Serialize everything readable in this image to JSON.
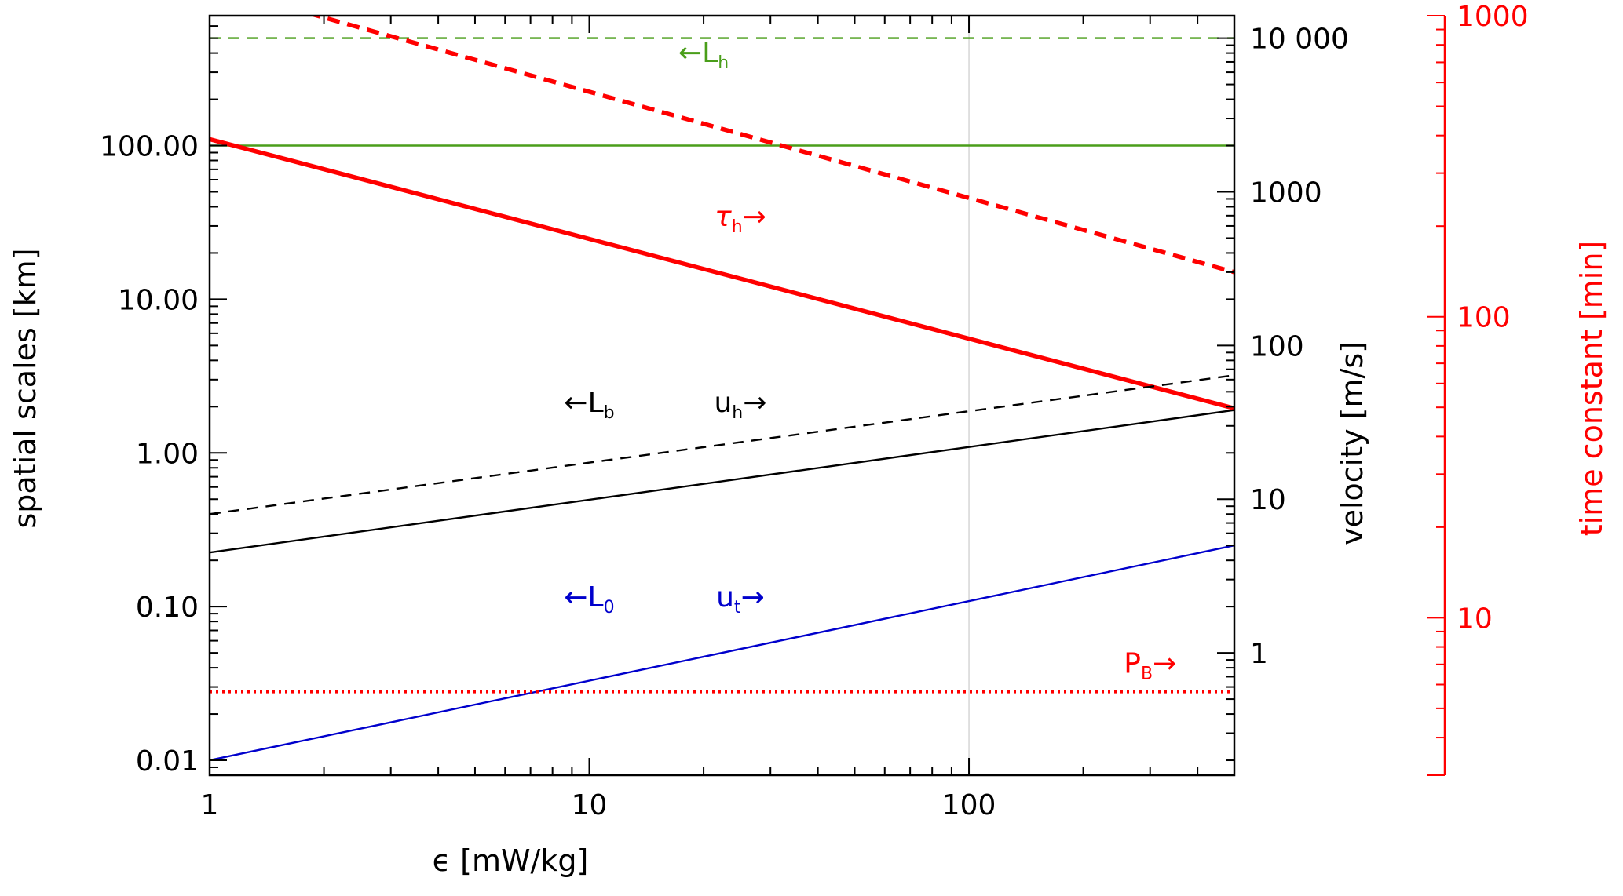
{
  "chart_data": {
    "type": "line",
    "x_axis": {
      "label": "ϵ [mW/kg]",
      "scale": "log",
      "range": [
        1,
        500
      ],
      "tick_labels": [
        "1",
        "10",
        "100"
      ],
      "tick_values": [
        1,
        10,
        100
      ]
    },
    "y_axes": {
      "left": {
        "label": "spatial scales [km]",
        "scale": "log",
        "range": [
          0.008,
          700
        ],
        "tick_labels": [
          "0.01",
          "0.10",
          "1.00",
          "10.00",
          "100.00"
        ],
        "tick_values": [
          0.01,
          0.1,
          1,
          10,
          100
        ],
        "color": "#000000"
      },
      "right_velocity": {
        "label": "velocity [m/s]",
        "scale": "log",
        "range": [
          0.16,
          14000
        ],
        "tick_labels": [
          "1",
          "10",
          "100",
          "1000",
          "10 000"
        ],
        "tick_values": [
          1,
          10,
          100,
          1000,
          10000
        ],
        "color": "#000000"
      },
      "right_time": {
        "label": "time constant [min]",
        "scale": "log",
        "range": [
          3,
          1000
        ],
        "tick_labels": [
          "10",
          "100",
          "1000"
        ],
        "tick_values": [
          10,
          100,
          1000
        ],
        "color": "#ff0000"
      }
    },
    "gridlines": {
      "x": [
        100
      ]
    },
    "series": [
      {
        "annotation": "L_h",
        "axis": "left",
        "style": "dashed",
        "color": "#4a9e1a",
        "x": [
          1,
          500
        ],
        "y": [
          500,
          500
        ]
      },
      {
        "annotation": "L_h",
        "axis": "left",
        "style": "solid",
        "color": "#4a9e1a",
        "x": [
          1,
          500
        ],
        "y": [
          100,
          100
        ]
      },
      {
        "annotation": "τ_h",
        "axis": "left",
        "style": "dashed-thick",
        "color": "#ff0000",
        "x": [
          1,
          500
        ],
        "y": [
          1100,
          15
        ]
      },
      {
        "annotation": "τ_h",
        "axis": "left",
        "style": "solid-thick",
        "color": "#ff0000",
        "x": [
          1,
          500
        ],
        "y": [
          110,
          1.95
        ]
      },
      {
        "annotation": "u_h",
        "axis": "left",
        "style": "dashed",
        "color": "#000000",
        "x": [
          1,
          500
        ],
        "y": [
          0.4,
          3.2
        ]
      },
      {
        "annotation": "L_b",
        "axis": "left",
        "style": "solid",
        "color": "#000000",
        "x": [
          1,
          500
        ],
        "y": [
          0.225,
          1.9
        ]
      },
      {
        "annotation": "u_t",
        "axis": "left",
        "style": "solid",
        "color": "#0000cc",
        "x": [
          1,
          500
        ],
        "y": [
          0.01,
          0.25
        ]
      },
      {
        "annotation": "P_B",
        "axis": "left",
        "style": "dotted",
        "color": "#ff0000",
        "x": [
          1,
          500
        ],
        "y": [
          0.028,
          0.028
        ]
      }
    ],
    "annotations": [
      {
        "text": "←L",
        "sub": "h",
        "color": "#4a9e1a",
        "x": 20,
        "y": 350,
        "italic": false
      },
      {
        "text": "τ",
        "sub": "h",
        "suffix": "→",
        "color": "#ff0000",
        "x": 25,
        "y": 30,
        "italic": true
      },
      {
        "text": "←L",
        "sub": "b",
        "color": "#000000",
        "x": 10,
        "y": 1.85,
        "italic": false
      },
      {
        "text": "u",
        "sub": "h",
        "suffix": "→",
        "color": "#000000",
        "x": 25,
        "y": 1.85,
        "italic": false
      },
      {
        "text": "←L",
        "sub": "0",
        "color": "#0000cc",
        "x": 10,
        "y": 0.1,
        "italic": false
      },
      {
        "text": "u",
        "sub": "t",
        "suffix": "→",
        "color": "#0000cc",
        "x": 25,
        "y": 0.1,
        "italic": false
      },
      {
        "text": "P",
        "sub": "B",
        "suffix": "→",
        "color": "#ff0000",
        "x": 300,
        "y": 0.037,
        "italic": false
      }
    ]
  }
}
